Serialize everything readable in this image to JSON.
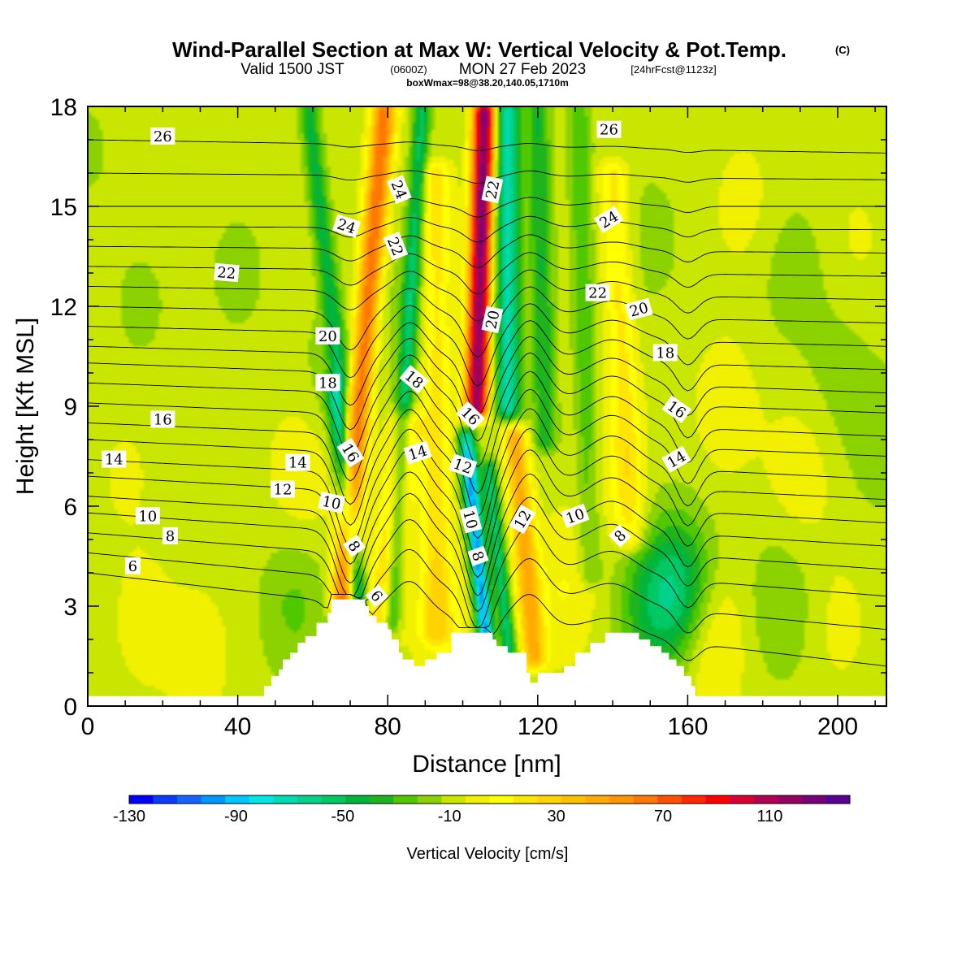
{
  "title": {
    "main": "Wind-Parallel Section at Max W: Vertical Velocity & Pot.Temp.",
    "copyright": "(C)",
    "valid_prefix": "Valid 1500 JST",
    "valid_z": "(0600Z)",
    "valid_date": "MON 27 Feb 2023",
    "forecast": "[24hrFcst@1123z]",
    "box": "boxWmax=98@38.20,140.05,1710m"
  },
  "chart_data": {
    "type": "heatmap",
    "xlabel": "Distance [nm]",
    "ylabel": "Height [Kft MSL]",
    "xlim": [
      0,
      213
    ],
    "ylim": [
      0,
      18
    ],
    "x_ticks": [
      "0",
      "40",
      "80",
      "120",
      "160",
      "200"
    ],
    "y_ticks": [
      "0",
      "3",
      "6",
      "9",
      "12",
      "15",
      "18"
    ],
    "colorbar": {
      "label": "Vertical Velocity [cm/s]",
      "tick_labels": [
        "-130",
        "-90",
        "-50",
        "-10",
        "30",
        "70",
        "110"
      ],
      "tick_values": [
        -130,
        -90,
        -50,
        -10,
        30,
        70,
        110
      ],
      "range": [
        -130,
        140
      ],
      "step": 10,
      "colors": [
        "#0000ff",
        "#0a3cff",
        "#1464ff",
        "#0096ff",
        "#00c8ff",
        "#00e6e6",
        "#00dcb4",
        "#00d28c",
        "#00c864",
        "#00b43c",
        "#1eb41e",
        "#50c800",
        "#8cd200",
        "#c8e600",
        "#f0f000",
        "#ffff00",
        "#ffe600",
        "#ffd200",
        "#ffbe00",
        "#ffaa00",
        "#ff9600",
        "#ff7800",
        "#ff5000",
        "#ff2800",
        "#ff0000",
        "#dc0032",
        "#b40050",
        "#960064",
        "#780078",
        "#5a0096"
      ]
    },
    "velocity_features": [
      {
        "x": 0,
        "z": 16.7,
        "w": -2
      },
      {
        "x": 14,
        "z": 12,
        "w": -3
      },
      {
        "x": 40,
        "z": 13,
        "w": -4
      },
      {
        "x": 66,
        "z": 10,
        "w": -8
      },
      {
        "x": 85,
        "z": 12,
        "w": -5
      },
      {
        "x": 150,
        "z": 14,
        "w": -5
      },
      {
        "x": 188,
        "z": 13,
        "w": -8
      },
      {
        "x": 200,
        "z": 10,
        "w": -5
      },
      {
        "x": 205,
        "z": 14,
        "w": 12
      },
      {
        "x": 170,
        "z": 9,
        "w": 18
      },
      {
        "x": 175,
        "z": 15,
        "w": 15
      },
      {
        "x": 15,
        "z": 2.5,
        "w": 15
      },
      {
        "x": 10,
        "z": 7,
        "w": 12
      },
      {
        "x": 30,
        "z": 1.5,
        "w": 16
      },
      {
        "x": 55,
        "z": 3,
        "w": -14
      },
      {
        "x": 57,
        "z": 7,
        "w": 20
      },
      {
        "x": 95,
        "z": 2.5,
        "w": 22
      },
      {
        "x": 127,
        "z": 3.5,
        "w": 22
      },
      {
        "x": 140,
        "z": 7,
        "w": 16
      },
      {
        "x": 150,
        "z": 3,
        "w": -28
      },
      {
        "x": 158,
        "z": 3.5,
        "w": -45
      },
      {
        "x": 166,
        "z": 2,
        "w": 30
      },
      {
        "x": 185,
        "z": 3,
        "w": -12
      },
      {
        "x": 190,
        "z": 7,
        "w": 18
      },
      {
        "x": 200,
        "z": 2.5,
        "w": 14
      },
      {
        "x": 211,
        "z": 8,
        "w": -8
      }
    ],
    "velocity_bands": [
      {
        "z0": 3.2,
        "x0": 68,
        "z1": 17.8,
        "x1": 79,
        "w": 85,
        "width": 3.2
      },
      {
        "z0": 2.3,
        "x0": 78,
        "z1": 8.5,
        "x1": 85,
        "w": 38,
        "width": 4.5
      },
      {
        "z0": 3.2,
        "x0": 72,
        "z1": 9.5,
        "x1": 66,
        "w": -62,
        "width": 2.5
      },
      {
        "z0": 10,
        "x0": 67,
        "z1": 17.8,
        "x1": 59,
        "w": -38,
        "width": 2.5
      },
      {
        "z0": 2.5,
        "x0": 81,
        "z1": 17.8,
        "x1": 89,
        "w": -48,
        "width": 2.2
      },
      {
        "z0": 2.2,
        "x0": 93,
        "z1": 16,
        "x1": 93,
        "w": 30,
        "width": 4
      },
      {
        "z0": 2.2,
        "x0": 106,
        "z1": 8,
        "x1": 101,
        "w": -100,
        "width": 2.3
      },
      {
        "z0": 8,
        "x0": 101,
        "z1": 17.8,
        "x1": 104,
        "w": 25,
        "width": 2.5
      },
      {
        "z0": 9,
        "x0": 104,
        "z1": 17.8,
        "x1": 106,
        "w": 135,
        "width": 2.8
      },
      {
        "z0": 1,
        "x0": 113,
        "z1": 7,
        "x1": 107,
        "w": -52,
        "width": 2
      },
      {
        "z0": 9,
        "x0": 112,
        "z1": 17.8,
        "x1": 112,
        "w": -70,
        "width": 3.2
      },
      {
        "z0": 1.5,
        "x0": 119,
        "z1": 8,
        "x1": 114,
        "w": 58,
        "width": 3.2
      },
      {
        "z0": 8,
        "x0": 122,
        "z1": 17.8,
        "x1": 120,
        "w": -35,
        "width": 3
      },
      {
        "z0": 4,
        "x0": 134,
        "z1": 17.8,
        "x1": 131,
        "w": -22,
        "width": 3
      },
      {
        "z0": 5,
        "x0": 145,
        "z1": 16,
        "x1": 140,
        "w": 28,
        "width": 4
      }
    ],
    "potential_temperature_contours": {
      "label_values": [
        "6",
        "8",
        "10",
        "12",
        "14",
        "16",
        "18",
        "20",
        "22",
        "24",
        "26"
      ],
      "levels": [
        6,
        7,
        8,
        9,
        10,
        11,
        12,
        13,
        14,
        15,
        16,
        17,
        18,
        19,
        20,
        21,
        22,
        23,
        24,
        25,
        26,
        27
      ],
      "left_heights_kft": [
        4.0,
        4.6,
        5.2,
        5.8,
        6.3,
        6.9,
        7.4,
        8.0,
        8.5,
        9.1,
        9.7,
        10.3,
        10.8,
        11.4,
        12.0,
        12.6,
        13.2,
        13.8,
        14.4,
        15.0,
        16.0,
        17.0
      ],
      "right_heights_kft": [
        1.2,
        2.3,
        3.3,
        4.1,
        4.8,
        5.5,
        6.2,
        6.8,
        7.5,
        8.1,
        8.8,
        9.4,
        10.1,
        10.8,
        11.5,
        12.2,
        12.9,
        13.6,
        14.3,
        15.0,
        15.8,
        16.6
      ],
      "labels": [
        {
          "text": "26",
          "x": 20,
          "z": 17.1,
          "angle": 0
        },
        {
          "text": "24",
          "x": 69,
          "z": 14.4,
          "angle": 18
        },
        {
          "text": "22",
          "x": 37,
          "z": 13.0,
          "angle": 5
        },
        {
          "text": "20",
          "x": 64,
          "z": 11.1,
          "angle": 0
        },
        {
          "text": "18",
          "x": 64,
          "z": 9.7,
          "angle": 0
        },
        {
          "text": "16",
          "x": 20,
          "z": 8.6,
          "angle": 0
        },
        {
          "text": "14",
          "x": 7,
          "z": 7.4,
          "angle": 0
        },
        {
          "text": "14",
          "x": 56,
          "z": 7.3,
          "angle": 0
        },
        {
          "text": "12",
          "x": 52,
          "z": 6.5,
          "angle": 0
        },
        {
          "text": "10",
          "x": 16,
          "z": 5.7,
          "angle": 0
        },
        {
          "text": "10",
          "x": 65,
          "z": 6.1,
          "angle": 12
        },
        {
          "text": "8",
          "x": 22,
          "z": 5.1,
          "angle": 0
        },
        {
          "text": "6",
          "x": 12,
          "z": 4.2,
          "angle": 0
        },
        {
          "text": "16",
          "x": 70,
          "z": 7.6,
          "angle": 58
        },
        {
          "text": "8",
          "x": 71,
          "z": 4.8,
          "angle": 55
        },
        {
          "text": "6",
          "x": 77,
          "z": 3.3,
          "angle": 50
        },
        {
          "text": "24",
          "x": 83,
          "z": 15.5,
          "angle": 68
        },
        {
          "text": "22",
          "x": 82,
          "z": 13.8,
          "angle": 68
        },
        {
          "text": "18",
          "x": 87,
          "z": 9.8,
          "angle": 40
        },
        {
          "text": "14",
          "x": 88,
          "z": 7.6,
          "angle": -18
        },
        {
          "text": "22",
          "x": 108,
          "z": 15.5,
          "angle": -78
        },
        {
          "text": "20",
          "x": 108,
          "z": 11.6,
          "angle": -78
        },
        {
          "text": "16",
          "x": 102,
          "z": 8.7,
          "angle": 45
        },
        {
          "text": "12",
          "x": 100,
          "z": 7.2,
          "angle": 20
        },
        {
          "text": "10",
          "x": 102,
          "z": 5.6,
          "angle": 75
        },
        {
          "text": "8",
          "x": 104,
          "z": 4.5,
          "angle": 70
        },
        {
          "text": "12",
          "x": 116,
          "z": 5.6,
          "angle": -60
        },
        {
          "text": "10",
          "x": 130,
          "z": 5.7,
          "angle": -20
        },
        {
          "text": "26",
          "x": 139,
          "z": 17.3,
          "angle": 0
        },
        {
          "text": "24",
          "x": 139,
          "z": 14.6,
          "angle": -32
        },
        {
          "text": "22",
          "x": 136,
          "z": 12.4,
          "angle": 0
        },
        {
          "text": "20",
          "x": 147,
          "z": 11.9,
          "angle": -15
        },
        {
          "text": "18",
          "x": 154,
          "z": 10.6,
          "angle": 0
        },
        {
          "text": "16",
          "x": 157,
          "z": 8.9,
          "angle": 35
        },
        {
          "text": "14",
          "x": 157,
          "z": 7.4,
          "angle": -30
        },
        {
          "text": "8",
          "x": 142,
          "z": 5.1,
          "angle": -45
        }
      ]
    },
    "terrain_profile": {
      "x": [
        0,
        44,
        47,
        49,
        51,
        52,
        54,
        56,
        58,
        61,
        64,
        65,
        70,
        74,
        75,
        77,
        80,
        81,
        83,
        84,
        87,
        90,
        93,
        97,
        100,
        106,
        108,
        109,
        112,
        117,
        118,
        120,
        124,
        127,
        130,
        134,
        138,
        140,
        144,
        147,
        150,
        153,
        155,
        157,
        159,
        161,
        162,
        213
      ],
      "z": [
        0.3,
        0.3,
        0.6,
        0.9,
        1.1,
        1.4,
        1.6,
        1.9,
        2.1,
        2.5,
        2.8,
        3.2,
        3.2,
        3.0,
        2.7,
        2.5,
        2.3,
        2.0,
        1.6,
        1.4,
        1.2,
        1.4,
        1.6,
        2.2,
        2.2,
        2.2,
        2.0,
        1.8,
        1.6,
        1.0,
        0.7,
        1.0,
        1.0,
        1.2,
        1.6,
        1.9,
        2.2,
        2.2,
        2.2,
        2.0,
        1.8,
        1.6,
        1.4,
        1.2,
        0.9,
        0.6,
        0.3,
        0.3
      ]
    }
  }
}
